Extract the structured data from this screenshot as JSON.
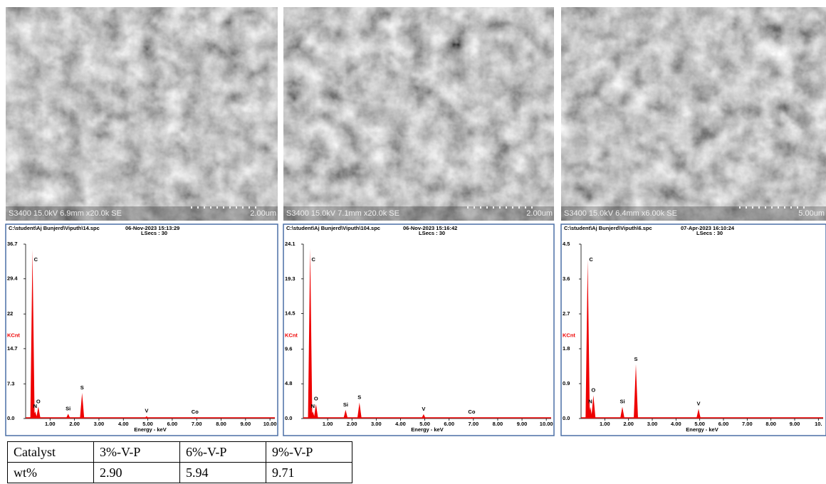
{
  "panels": [
    {
      "sem": {
        "caption": "S3400 15.0kV 6.9mm x20.0k SE",
        "scale": "2.00um"
      },
      "spectrum": {
        "file": "C:\\student\\Aj Bunjerd\\Viputh\\14.spc",
        "date": "06-Nov-2023 15:13:29",
        "lsecs": "LSecs : 30",
        "ylabel": "KCnt",
        "xlabel": "Energy - keV",
        "xlim": [
          0,
          10.2
        ],
        "ylim": [
          0,
          36.7
        ],
        "yticks": [
          {
            "value": 0,
            "label": "0.0"
          },
          7.3,
          14.7,
          22.0,
          29.4,
          36.7
        ],
        "xticks": [
          {
            "value": 1,
            "label": "1.00"
          },
          {
            "value": 2,
            "label": "2.00"
          },
          {
            "value": 3,
            "label": "3.00"
          },
          {
            "value": 4,
            "label": "4.00"
          },
          {
            "value": 5,
            "label": "5.00"
          },
          {
            "value": 6,
            "label": "6.00"
          },
          {
            "value": 7,
            "label": "7.00"
          },
          {
            "value": 8,
            "label": "8.00"
          },
          {
            "value": 9,
            "label": "9.00"
          },
          {
            "value": 10,
            "label": "10.00"
          }
        ],
        "peaks": [
          {
            "label": "C",
            "energy": 0.28,
            "counts": 35.5
          },
          {
            "label": "N",
            "energy": 0.39,
            "counts": 1.5
          },
          {
            "label": "O",
            "energy": 0.52,
            "counts": 2.5
          },
          {
            "label": "Si",
            "energy": 1.74,
            "counts": 1.0
          },
          {
            "label": "S",
            "energy": 2.31,
            "counts": 5.4
          },
          {
            "label": "V",
            "energy": 4.95,
            "counts": 0.5
          },
          {
            "label": "Co",
            "energy": 6.93,
            "counts": 0.3
          }
        ]
      }
    },
    {
      "sem": {
        "caption": "S3400 15.0kV 7.1mm x20.0k SE",
        "scale": "2.00um"
      },
      "spectrum": {
        "file": "C:\\student\\Aj Bunjerd\\Viputh\\104.spc",
        "date": "06-Nov-2023 15:16:42",
        "lsecs": "LSecs : 30",
        "ylabel": "KCnt",
        "xlabel": "Energy - keV",
        "xlim": [
          0,
          10.2
        ],
        "ylim": [
          0,
          24.1
        ],
        "yticks": [
          {
            "value": 0,
            "label": "0.0"
          },
          4.8,
          9.6,
          14.5,
          19.3,
          24.1
        ],
        "xticks": [
          {
            "value": 1,
            "label": "1.00"
          },
          {
            "value": 2,
            "label": "2.00"
          },
          {
            "value": 3,
            "label": "3.00"
          },
          {
            "value": 4,
            "label": "4.00"
          },
          {
            "value": 5,
            "label": "5.00"
          },
          {
            "value": 6,
            "label": "6.00"
          },
          {
            "value": 7,
            "label": "7.00"
          },
          {
            "value": 8,
            "label": "8.00"
          },
          {
            "value": 9,
            "label": "9.00"
          },
          {
            "value": 10,
            "label": "10.00"
          }
        ],
        "peaks": [
          {
            "label": "C",
            "energy": 0.28,
            "counts": 23.5
          },
          {
            "label": "N",
            "energy": 0.39,
            "counts": 1.0
          },
          {
            "label": "O",
            "energy": 0.52,
            "counts": 2.0
          },
          {
            "label": "Si",
            "energy": 1.74,
            "counts": 1.2
          },
          {
            "label": "S",
            "energy": 2.31,
            "counts": 2.2
          },
          {
            "label": "V",
            "energy": 4.95,
            "counts": 0.6
          },
          {
            "label": "Co",
            "energy": 6.93,
            "counts": 0.2
          }
        ]
      }
    },
    {
      "sem": {
        "caption": "S3400 15.0kV 6.4mm x6.00k SE",
        "scale": "5.00um"
      },
      "spectrum": {
        "file": "C:\\student\\Aj Bunjerd\\Viputh\\6.spc",
        "date": "07-Apr-2023 16:10:24",
        "lsecs": "LSecs : 30",
        "ylabel": "KCnt",
        "xlabel": "Energy - keV",
        "xlim": [
          0,
          10.2
        ],
        "ylim": [
          0,
          4.5
        ],
        "yticks": [
          {
            "value": 0,
            "label": "0.0"
          },
          0.9,
          1.8,
          2.7,
          3.6,
          4.5
        ],
        "xticks": [
          {
            "value": 1,
            "label": "1.00"
          },
          {
            "value": 2,
            "label": "2.00"
          },
          {
            "value": 3,
            "label": "3.00"
          },
          {
            "value": 4,
            "label": "4.00"
          },
          {
            "value": 5,
            "label": "5.00"
          },
          {
            "value": 6,
            "label": "6.00"
          },
          {
            "value": 7,
            "label": "7.00"
          },
          {
            "value": 8,
            "label": "8.00"
          },
          {
            "value": 9,
            "label": "9.00"
          },
          {
            "value": 10,
            "label": "10."
          }
        ],
        "peaks": [
          {
            "label": "C",
            "energy": 0.28,
            "counts": 4.1
          },
          {
            "label": "N",
            "energy": 0.39,
            "counts": 0.3
          },
          {
            "label": "O",
            "energy": 0.52,
            "counts": 0.6
          },
          {
            "label": "Si",
            "energy": 1.74,
            "counts": 0.3
          },
          {
            "label": "S",
            "energy": 2.31,
            "counts": 1.4
          },
          {
            "label": "V",
            "energy": 4.95,
            "counts": 0.25
          }
        ]
      }
    }
  ],
  "table": {
    "header": [
      "Catalyst",
      "3%-V-P",
      "6%-V-P",
      "9%-V-P"
    ],
    "rows": [
      [
        "wt%",
        "2.90",
        "5.94",
        "9.71"
      ]
    ]
  }
}
